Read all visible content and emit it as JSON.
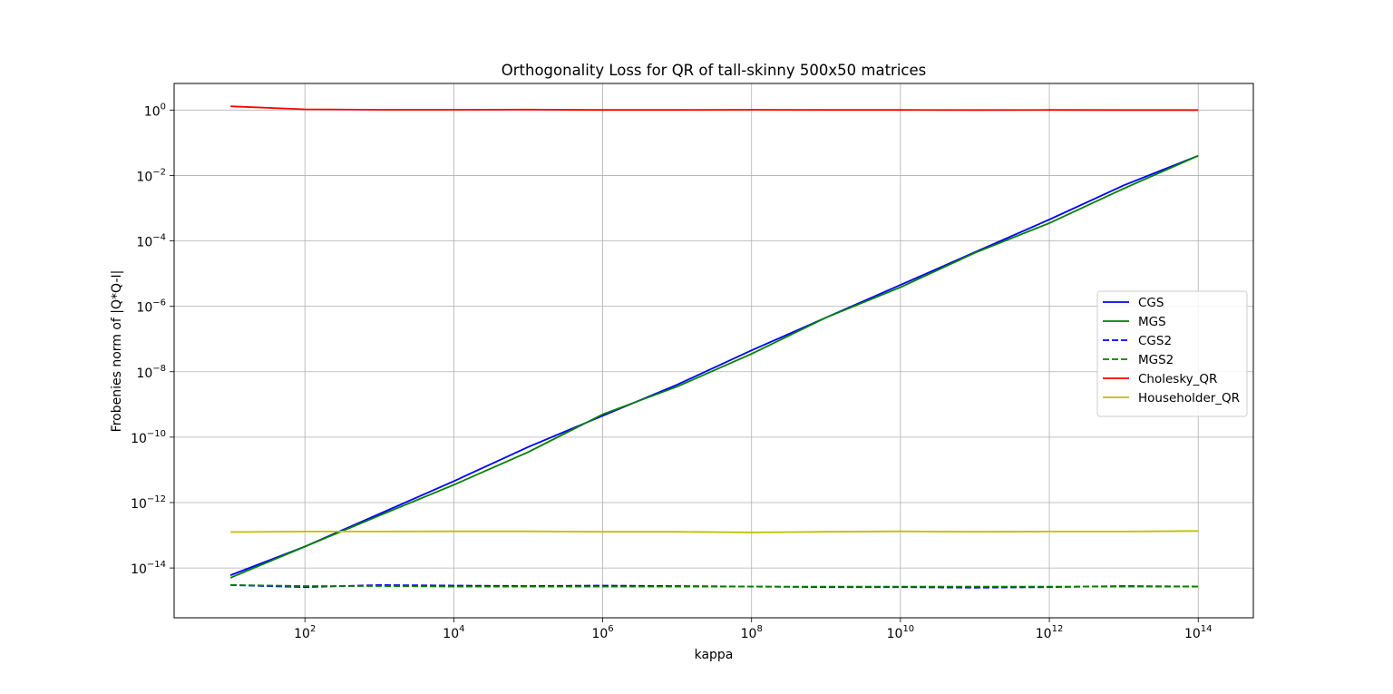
{
  "chart_data": {
    "type": "line",
    "title": "Orthogonality Loss for QR of tall-skinny 500x50 matrices",
    "xlabel": "kappa",
    "ylabel": "Frobenies norm of |Q*Q-I|",
    "xscale": "log",
    "yscale": "log",
    "xlim": [
      1.75,
      550000000000000.0
    ],
    "ylim": [
      3e-16,
      6.5
    ],
    "grid": true,
    "legend_position": "center-right",
    "x": [
      10,
      100,
      1000,
      10000,
      100000,
      1000000,
      10000000,
      100000000,
      1000000000,
      10000000000,
      100000000000,
      1000000000000,
      10000000000000,
      100000000000000
    ],
    "x_ticks": [
      {
        "value": 100,
        "base": "10",
        "exp": "2"
      },
      {
        "value": 10000,
        "base": "10",
        "exp": "4"
      },
      {
        "value": 1000000,
        "base": "10",
        "exp": "6"
      },
      {
        "value": 100000000,
        "base": "10",
        "exp": "8"
      },
      {
        "value": 10000000000,
        "base": "10",
        "exp": "10"
      },
      {
        "value": 1000000000000,
        "base": "10",
        "exp": "12"
      },
      {
        "value": 100000000000000,
        "base": "10",
        "exp": "14"
      }
    ],
    "y_ticks": [
      {
        "value": 1e-14,
        "base": "10",
        "exp": "−14"
      },
      {
        "value": 1e-12,
        "base": "10",
        "exp": "−12"
      },
      {
        "value": 1e-10,
        "base": "10",
        "exp": "−10"
      },
      {
        "value": 1e-08,
        "base": "10",
        "exp": "−8"
      },
      {
        "value": 1e-06,
        "base": "10",
        "exp": "−6"
      },
      {
        "value": 0.0001,
        "base": "10",
        "exp": "−4"
      },
      {
        "value": 0.01,
        "base": "10",
        "exp": "−2"
      },
      {
        "value": 1,
        "base": "10",
        "exp": "0"
      }
    ],
    "series": [
      {
        "name": "CGS",
        "color": "#0000ff",
        "dash": "solid",
        "values": [
          6e-15,
          4.5e-14,
          4.5e-13,
          4.5e-12,
          5e-11,
          4.5e-10,
          4e-09,
          4.5e-08,
          4.5e-07,
          4.5e-06,
          4.5e-05,
          0.00045,
          0.005,
          0.04
        ]
      },
      {
        "name": "MGS",
        "color": "#008000",
        "dash": "solid",
        "values": [
          5e-15,
          4.5e-14,
          4e-13,
          3.5e-12,
          3.5e-11,
          5e-10,
          3.5e-09,
          3.5e-08,
          4.5e-07,
          3.8e-06,
          4.3e-05,
          0.00035,
          0.004,
          0.04
        ]
      },
      {
        "name": "CGS2",
        "color": "#0000ff",
        "dash": "dashed",
        "values": [
          3e-15,
          2.6e-15,
          3e-15,
          2.9e-15,
          2.8e-15,
          2.9e-15,
          2.8e-15,
          2.7e-15,
          2.6e-15,
          2.6e-15,
          2.5e-15,
          2.6e-15,
          2.8e-15,
          2.7e-15
        ]
      },
      {
        "name": "MGS2",
        "color": "#008000",
        "dash": "dashed",
        "values": [
          3e-15,
          2.8e-15,
          2.8e-15,
          2.7e-15,
          2.7e-15,
          2.7e-15,
          2.7e-15,
          2.7e-15,
          2.7e-15,
          2.7e-15,
          2.7e-15,
          2.7e-15,
          2.7e-15,
          2.7e-15
        ]
      },
      {
        "name": "Cholesky_QR",
        "color": "#ff0000",
        "dash": "solid",
        "values": [
          1.3,
          1.05,
          1.02,
          1.02,
          1.03,
          1.01,
          1.01,
          1.02,
          1.01,
          1.01,
          1.0,
          1.01,
          1.0,
          1.0
        ]
      },
      {
        "name": "Householder_QR",
        "color": "#bfbf00",
        "dash": "solid",
        "values": [
          1.25e-13,
          1.3e-13,
          1.3e-13,
          1.32e-13,
          1.32e-13,
          1.28e-13,
          1.28e-13,
          1.22e-13,
          1.28e-13,
          1.32e-13,
          1.28e-13,
          1.3e-13,
          1.3e-13,
          1.35e-13
        ]
      }
    ]
  }
}
